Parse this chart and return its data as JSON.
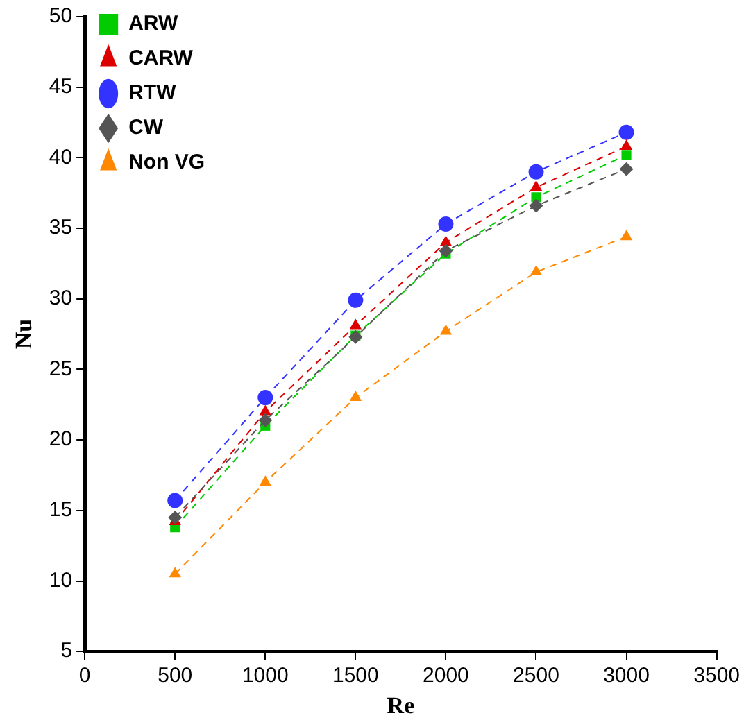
{
  "chart_data": {
    "type": "line",
    "xlabel": "Re",
    "ylabel": "Nu",
    "x": [
      500,
      1000,
      1500,
      2000,
      2500,
      3000
    ],
    "xlim": [
      0,
      3500
    ],
    "xticks": [
      0,
      500,
      1000,
      1500,
      2000,
      2500,
      3000,
      3500
    ],
    "ylim": [
      5,
      50
    ],
    "yticks": [
      5,
      10,
      15,
      20,
      25,
      30,
      35,
      40,
      45,
      50
    ],
    "grid": false,
    "legend": "top left",
    "line_style": "dashed",
    "series": [
      {
        "name": "ARW",
        "color": "#00cc00",
        "marker": "square",
        "values": [
          13.8,
          21.0,
          27.4,
          33.2,
          37.2,
          40.2
        ]
      },
      {
        "name": "CARW",
        "color": "#dd0000",
        "marker": "triangle",
        "values": [
          14.2,
          22.0,
          28.1,
          34.0,
          37.9,
          40.8
        ]
      },
      {
        "name": "RTW",
        "color": "#3333ff",
        "marker": "circle",
        "values": [
          15.7,
          23.0,
          29.9,
          35.3,
          39.0,
          41.8
        ]
      },
      {
        "name": "CW",
        "color": "#555555",
        "marker": "diamond",
        "values": [
          14.5,
          21.4,
          27.3,
          33.4,
          36.6,
          39.2
        ]
      },
      {
        "name": "Non VG",
        "color": "#ff8800",
        "marker": "triangle",
        "values": [
          10.5,
          17.0,
          23.0,
          27.7,
          31.9,
          34.4
        ]
      }
    ]
  }
}
